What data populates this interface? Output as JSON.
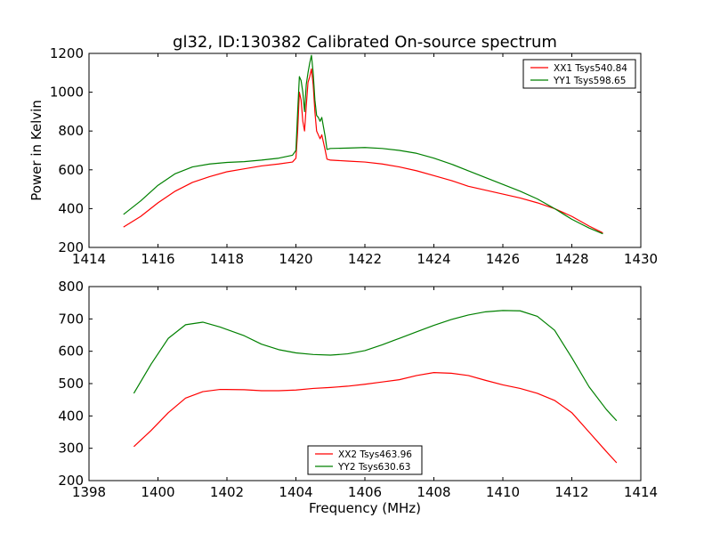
{
  "title": "gl32, ID:130382 Calibrated On-source spectrum",
  "chart_data": [
    {
      "type": "line",
      "ylabel": "Power in Kelvin",
      "xlabel": "",
      "xlim": [
        1414,
        1430
      ],
      "ylim": [
        200,
        1200
      ],
      "xticks": [
        "1414",
        "1416",
        "1418",
        "1420",
        "1422",
        "1424",
        "1426",
        "1428",
        "1430"
      ],
      "yticks": [
        "200",
        "400",
        "600",
        "800",
        "1000",
        "1200"
      ],
      "grid": false,
      "legend_position": "top-right",
      "series": [
        {
          "name": "XX1 Tsys540.84",
          "color": "#ff0000",
          "x": [
            1415.0,
            1415.5,
            1416.0,
            1416.5,
            1417.0,
            1417.5,
            1418.0,
            1418.5,
            1419.0,
            1419.5,
            1419.9,
            1420.0,
            1420.05,
            1420.1,
            1420.15,
            1420.2,
            1420.25,
            1420.3,
            1420.35,
            1420.4,
            1420.45,
            1420.5,
            1420.55,
            1420.6,
            1420.65,
            1420.7,
            1420.75,
            1420.8,
            1420.85,
            1420.9,
            1421.0,
            1421.5,
            1422.0,
            1422.5,
            1423.0,
            1423.5,
            1424.0,
            1424.5,
            1425.0,
            1425.5,
            1426.0,
            1426.5,
            1427.0,
            1427.5,
            1428.0,
            1428.5,
            1428.9
          ],
          "y": [
            305,
            360,
            430,
            490,
            535,
            565,
            590,
            605,
            620,
            630,
            640,
            660,
            800,
            1000,
            960,
            850,
            800,
            930,
            1050,
            1080,
            1120,
            1040,
            900,
            800,
            780,
            760,
            780,
            740,
            700,
            655,
            650,
            645,
            640,
            630,
            615,
            595,
            570,
            545,
            515,
            495,
            475,
            455,
            430,
            400,
            360,
            310,
            275
          ]
        },
        {
          "name": "YY1 Tsys598.65",
          "color": "#008000",
          "x": [
            1415.0,
            1415.5,
            1416.0,
            1416.5,
            1417.0,
            1417.5,
            1418.0,
            1418.5,
            1419.0,
            1419.5,
            1419.9,
            1420.0,
            1420.05,
            1420.1,
            1420.15,
            1420.2,
            1420.25,
            1420.3,
            1420.35,
            1420.4,
            1420.45,
            1420.5,
            1420.55,
            1420.6,
            1420.65,
            1420.7,
            1420.75,
            1420.8,
            1420.85,
            1420.9,
            1421.0,
            1421.5,
            1422.0,
            1422.5,
            1423.0,
            1423.5,
            1424.0,
            1424.5,
            1425.0,
            1425.5,
            1426.0,
            1426.5,
            1427.0,
            1427.5,
            1428.0,
            1428.5,
            1428.9
          ],
          "y": [
            370,
            440,
            520,
            580,
            615,
            630,
            638,
            642,
            650,
            660,
            675,
            700,
            900,
            1080,
            1060,
            1000,
            900,
            1040,
            1100,
            1150,
            1190,
            1100,
            960,
            880,
            870,
            850,
            870,
            820,
            770,
            705,
            710,
            712,
            715,
            710,
            700,
            685,
            660,
            630,
            595,
            560,
            525,
            490,
            450,
            400,
            345,
            300,
            270
          ]
        }
      ]
    },
    {
      "type": "line",
      "ylabel": "",
      "xlabel": "Frequency (MHz)",
      "xlim": [
        1398,
        1414
      ],
      "ylim": [
        200,
        800
      ],
      "xticks": [
        "1398",
        "1400",
        "1402",
        "1404",
        "1406",
        "1408",
        "1410",
        "1412",
        "1414"
      ],
      "yticks": [
        "200",
        "300",
        "400",
        "500",
        "600",
        "700",
        "800"
      ],
      "grid": false,
      "legend_position": "bottom-center",
      "series": [
        {
          "name": "XX2 Tsys463.96",
          "color": "#ff0000",
          "x": [
            1399.3,
            1399.8,
            1400.3,
            1400.8,
            1401.3,
            1401.8,
            1402.5,
            1403.0,
            1403.5,
            1404.0,
            1404.5,
            1405.0,
            1405.5,
            1406.0,
            1406.5,
            1407.0,
            1407.5,
            1408.0,
            1408.5,
            1409.0,
            1409.5,
            1410.0,
            1410.5,
            1411.0,
            1411.5,
            1412.0,
            1412.5,
            1413.0,
            1413.3
          ],
          "y": [
            305,
            355,
            410,
            455,
            475,
            482,
            481,
            478,
            478,
            480,
            485,
            488,
            492,
            498,
            505,
            512,
            525,
            534,
            532,
            525,
            510,
            496,
            485,
            470,
            448,
            410,
            350,
            290,
            255
          ]
        },
        {
          "name": "YY2 Tsys630.63",
          "color": "#008000",
          "x": [
            1399.3,
            1399.8,
            1400.3,
            1400.8,
            1401.3,
            1401.8,
            1402.5,
            1403.0,
            1403.5,
            1404.0,
            1404.5,
            1405.0,
            1405.5,
            1406.0,
            1406.5,
            1407.0,
            1407.5,
            1408.0,
            1408.5,
            1409.0,
            1409.5,
            1410.0,
            1410.5,
            1411.0,
            1411.5,
            1412.0,
            1412.5,
            1413.0,
            1413.3
          ],
          "y": [
            470,
            560,
            640,
            682,
            690,
            675,
            648,
            622,
            605,
            595,
            590,
            588,
            592,
            602,
            620,
            640,
            660,
            680,
            698,
            712,
            722,
            726,
            725,
            708,
            665,
            580,
            490,
            420,
            385
          ]
        }
      ]
    }
  ]
}
